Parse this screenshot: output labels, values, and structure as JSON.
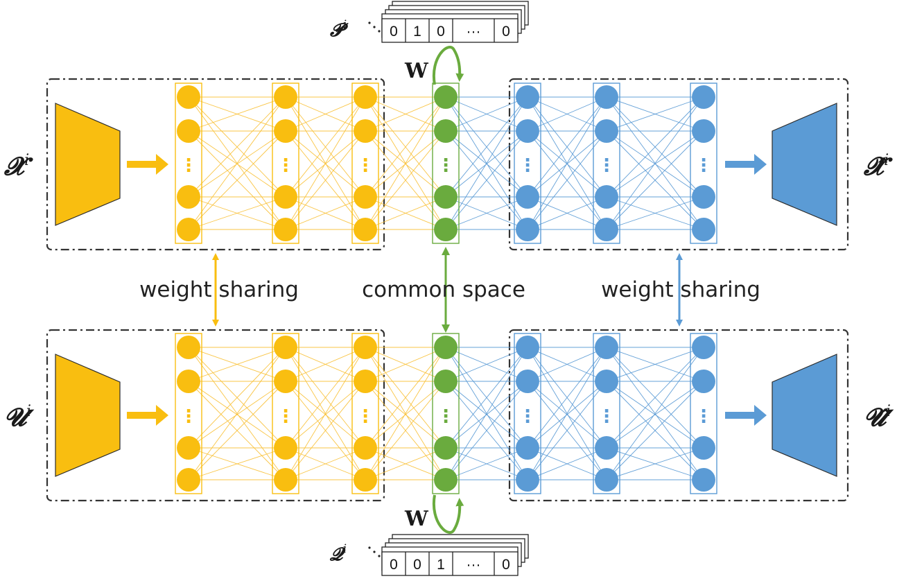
{
  "colors": {
    "encoder": "#F9BE10",
    "latent": "#6AAB3E",
    "decoder": "#5B9BD5",
    "edge_encoder": "#F9C23C",
    "edge_decoder": "#5B9BD5",
    "border": "#333333"
  },
  "labels": {
    "input_top": "𝓧",
    "input_top_sup": "i",
    "input_bottom": "𝓤",
    "input_bottom_sup": "i",
    "output_top": "𝓧̂",
    "output_top_sup": "i",
    "output_bottom": "𝓤̂",
    "output_bottom_sup": "i",
    "p_symbol": "𝓟",
    "p_sup": "i",
    "q_symbol": "𝓠",
    "q_sup": "i",
    "w_top": "W",
    "w_bottom": "W",
    "weight_sharing_left": "weight sharing",
    "common_space": "common space",
    "weight_sharing_right": "weight sharing"
  },
  "p_vector": [
    "0",
    "1",
    "0",
    "···",
    "0"
  ],
  "q_vector": [
    "0",
    "0",
    "1",
    "···",
    "0"
  ],
  "layer_ellipsis": "⋮"
}
